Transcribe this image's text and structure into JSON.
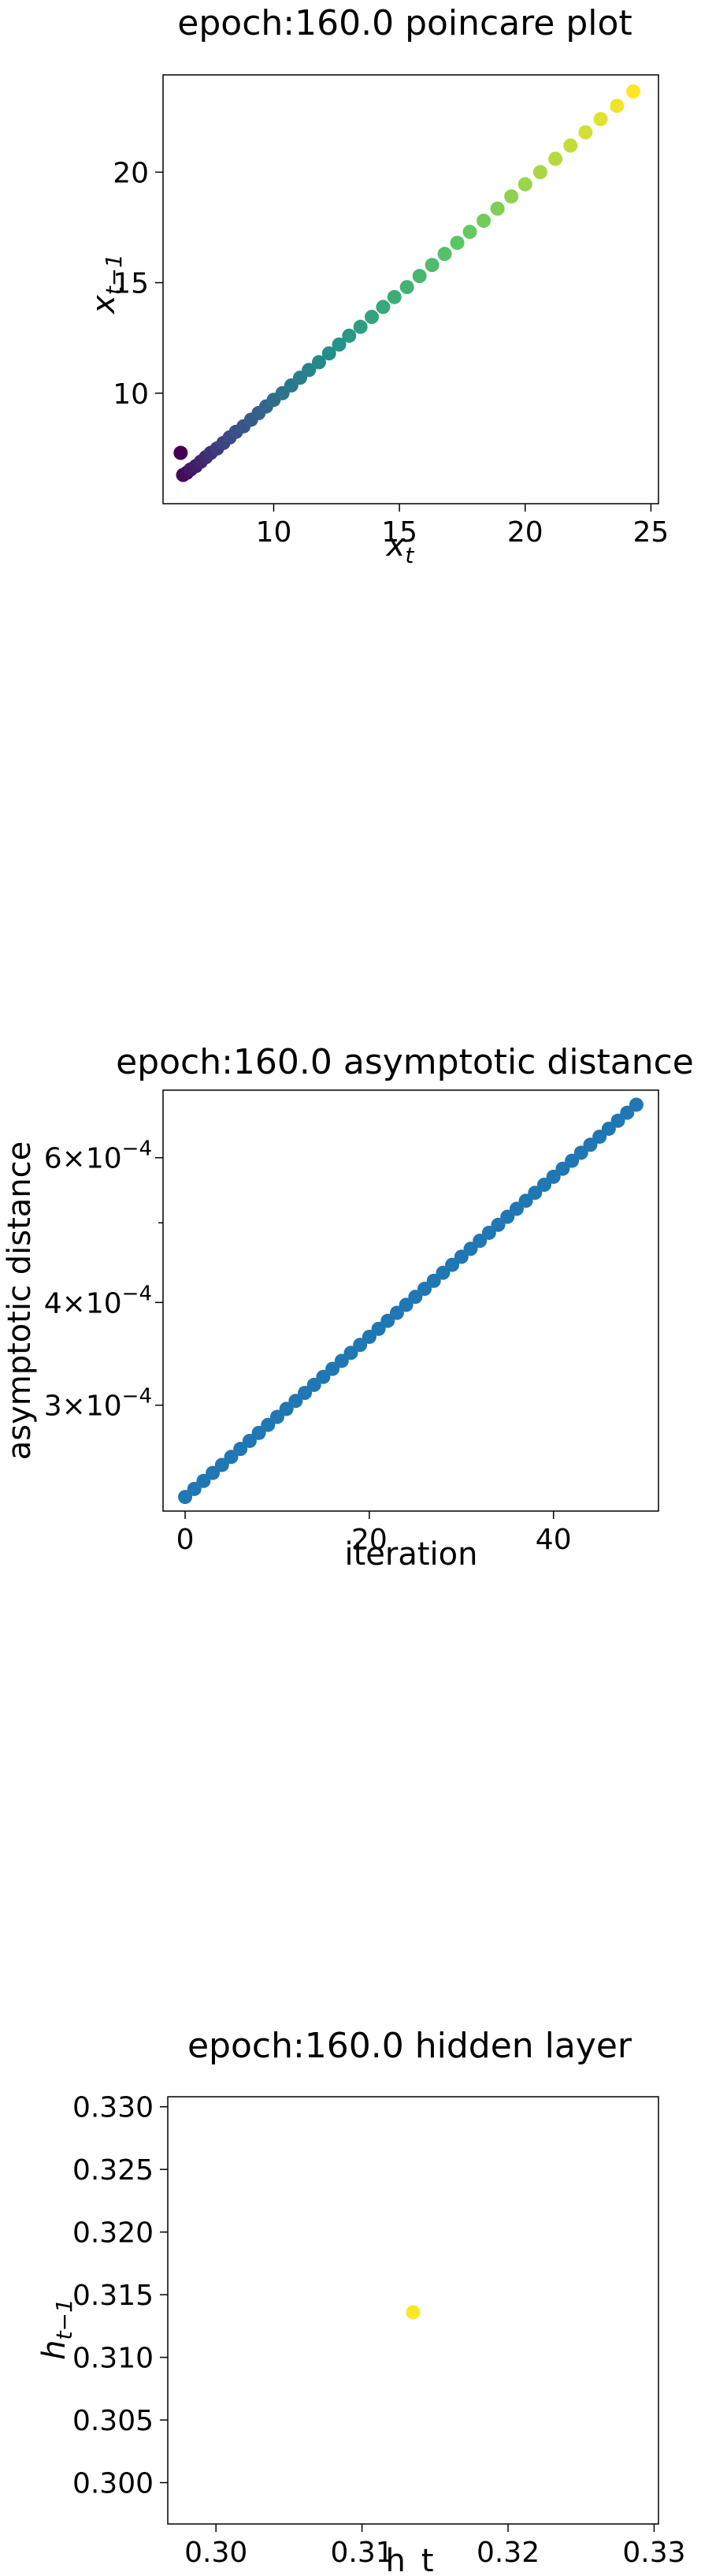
{
  "chart_data": [
    {
      "type": "scatter",
      "title": "epoch:160.0 poincare plot",
      "xlabel": "x_t",
      "ylabel": "x_{t-1}",
      "xlim": [
        5.6,
        25.3
      ],
      "ylim": [
        5.0,
        24.4
      ],
      "xticks": [
        10,
        15,
        20,
        25
      ],
      "yticks": [
        10,
        15,
        20
      ],
      "colormap": "viridis",
      "colors": [
        "#440154",
        "#3b528b",
        "#21918c",
        "#5ec962",
        "#fde725"
      ],
      "series": [
        {
          "x": [
            6.3,
            6.4,
            6.55,
            6.7,
            6.9,
            7.1,
            7.3,
            7.5,
            7.75,
            8.0,
            8.25,
            8.5,
            8.8,
            9.1,
            9.4,
            9.7,
            10.0,
            10.35,
            10.7,
            11.05,
            11.4,
            11.8,
            12.2,
            12.6,
            13.0,
            13.45,
            13.9,
            14.35,
            14.8,
            15.3,
            15.8,
            16.3,
            16.8,
            17.3,
            17.8,
            18.35,
            18.9,
            19.45,
            20.0,
            20.6,
            21.2,
            21.8,
            22.4,
            23.0,
            23.65,
            24.3
          ],
          "y": [
            7.3,
            6.3,
            6.4,
            6.55,
            6.7,
            6.9,
            7.1,
            7.3,
            7.5,
            7.75,
            8.0,
            8.25,
            8.5,
            8.8,
            9.1,
            9.4,
            9.7,
            10.0,
            10.35,
            10.7,
            11.05,
            11.4,
            11.8,
            12.2,
            12.6,
            13.0,
            13.45,
            13.9,
            14.35,
            14.8,
            15.3,
            15.8,
            16.3,
            16.8,
            17.3,
            17.8,
            18.35,
            18.9,
            19.45,
            20.0,
            20.6,
            21.2,
            21.8,
            22.4,
            23.0,
            23.65
          ]
        }
      ]
    },
    {
      "type": "scatter",
      "title": "epoch:160.0 asymptotic distance",
      "xlabel": "iteration",
      "ylabel": "asymptotic distance",
      "yscale": "log",
      "xlim": [
        -2.4,
        51.4
      ],
      "ylim": [
        0.000223,
        0.000725
      ],
      "xticks": [
        0,
        20,
        40
      ],
      "yticks": [
        {
          "value": 0.0003,
          "mantissa": "3",
          "exponent": "−4"
        },
        {
          "value": 0.0004,
          "mantissa": "4",
          "exponent": "−4"
        },
        {
          "value": 0.0006,
          "mantissa": "6",
          "exponent": "−4"
        }
      ],
      "color": "#1f77b4",
      "series": [
        {
          "x": [
            0,
            1,
            2,
            3,
            4,
            5,
            6,
            7,
            8,
            9,
            10,
            11,
            12,
            13,
            14,
            15,
            16,
            17,
            18,
            19,
            20,
            21,
            22,
            23,
            24,
            25,
            26,
            27,
            28,
            29,
            30,
            31,
            32,
            33,
            34,
            35,
            36,
            37,
            38,
            39,
            40,
            41,
            42,
            43,
            44,
            45,
            46,
            47,
            48,
            49
          ],
          "y_start": 0.000232,
          "y_end": 0.000696
        }
      ]
    },
    {
      "type": "scatter",
      "title": "epoch:160.0 hidden layer",
      "xlabel": "h_t",
      "ylabel": "h_{t-1}",
      "xlim": [
        0.2967,
        0.3303
      ],
      "ylim": [
        0.2967,
        0.3308
      ],
      "xticks": [
        "0.30",
        "0.31",
        "0.32",
        "0.33"
      ],
      "yticks": [
        "0.300",
        "0.305",
        "0.310",
        "0.315",
        "0.320",
        "0.325",
        "0.330"
      ],
      "color": "#fde725",
      "series": [
        {
          "x": [
            0.3135
          ],
          "y": [
            0.3136
          ]
        }
      ]
    }
  ]
}
